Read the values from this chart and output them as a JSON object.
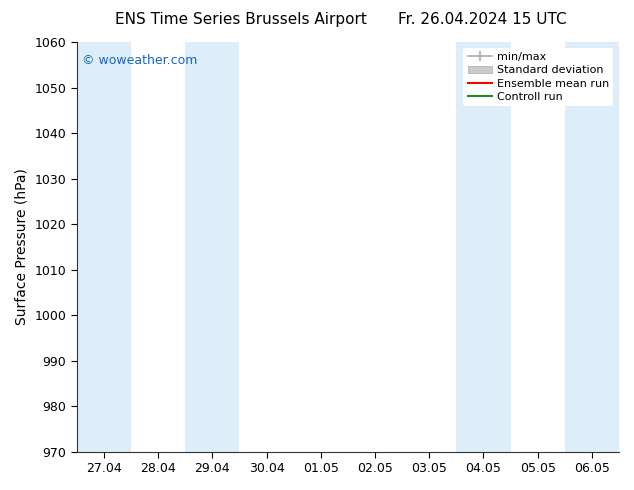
{
  "title_left": "ENS Time Series Brussels Airport",
  "title_right": "Fr. 26.04.2024 15 UTC",
  "ylabel": "Surface Pressure (hPa)",
  "ylim": [
    970,
    1060
  ],
  "yticks": [
    970,
    980,
    990,
    1000,
    1010,
    1020,
    1030,
    1040,
    1050,
    1060
  ],
  "xlabel_ticks": [
    "27.04",
    "28.04",
    "29.04",
    "30.04",
    "01.05",
    "02.05",
    "03.05",
    "04.05",
    "05.05",
    "06.05"
  ],
  "watermark": "© woweather.com",
  "watermark_color": "#1565C0",
  "background_color": "#ffffff",
  "shaded_band_color": "#ddeef8",
  "legend_labels": [
    "min/max",
    "Standard deviation",
    "Ensemble mean run",
    "Controll run"
  ],
  "legend_minmax_color": "#aaaaaa",
  "legend_std_color": "#cccccc",
  "legend_ens_color": "#ff0000",
  "legend_ctrl_color": "#228B22",
  "title_fontsize": 11,
  "tick_fontsize": 9,
  "label_fontsize": 10,
  "shaded_intervals": [
    [
      -0.5,
      0.5
    ],
    [
      1.5,
      2.5
    ],
    [
      6.5,
      7.5
    ],
    [
      8.5,
      9.5
    ]
  ]
}
